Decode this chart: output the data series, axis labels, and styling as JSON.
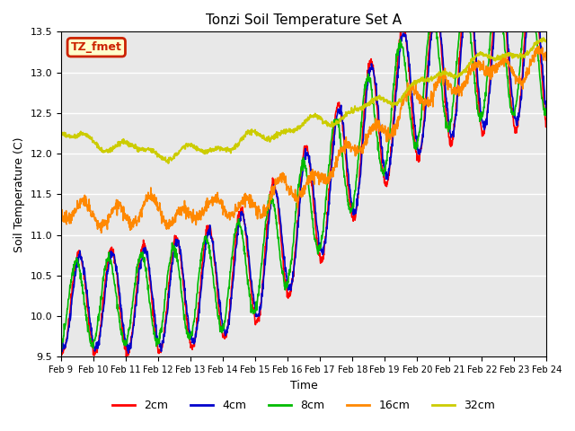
{
  "title": "Tonzi Soil Temperature Set A",
  "xlabel": "Time",
  "ylabel": "Soil Temperature (C)",
  "ylim": [
    9.5,
    13.5
  ],
  "yticks": [
    9.5,
    10.0,
    10.5,
    11.0,
    11.5,
    12.0,
    12.5,
    13.0,
    13.5
  ],
  "xtick_labels": [
    "Feb 9",
    "Feb 10",
    "Feb 11",
    "Feb 12",
    "Feb 13",
    "Feb 14",
    "Feb 15",
    "Feb 16",
    "Feb 17",
    "Feb 18",
    "Feb 19",
    "Feb 20",
    "Feb 21",
    "Feb 22",
    "Feb 23",
    "Feb 24"
  ],
  "legend_box_label": "TZ_fmet",
  "colors": {
    "2cm": "#ff0000",
    "4cm": "#0000cc",
    "8cm": "#00bb00",
    "16cm": "#ff8800",
    "32cm": "#cccc00"
  },
  "linewidth": 1.2,
  "bg_color": "#e8e8e8",
  "legend_items": [
    "2cm",
    "4cm",
    "8cm",
    "16cm",
    "32cm"
  ],
  "legend_colors": [
    "#ff0000",
    "#0000cc",
    "#00bb00",
    "#ff8800",
    "#cccc00"
  ]
}
